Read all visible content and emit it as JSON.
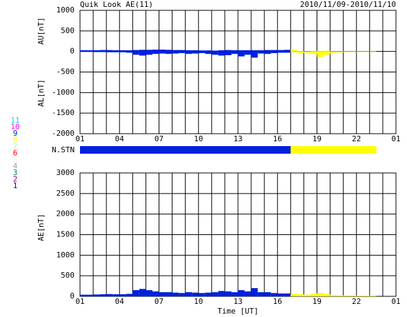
{
  "chart_data": [
    {
      "type": "bars",
      "title": "Quik Look AE(11)",
      "date_range": "2010/11/09-2010/11/10",
      "ylabels": [
        "AU[nT]",
        "AL[nT]"
      ],
      "x": [
        0,
        0.5,
        1,
        1.5,
        2,
        2.5,
        3,
        3.5,
        4,
        4.5,
        5,
        5.5,
        6,
        6.5,
        7,
        7.5,
        8,
        8.5,
        9,
        9.5,
        10,
        10.5,
        11,
        11.5,
        12,
        12.5,
        13,
        13.5,
        14,
        14.5,
        15,
        15.5,
        16,
        16.5,
        17,
        17.5,
        18,
        18.5,
        19,
        19.5,
        20,
        20.5,
        21,
        21.5,
        22
      ],
      "series": [
        {
          "values": [
            30,
            30,
            30,
            35,
            35,
            30,
            30,
            30,
            35,
            40,
            40,
            45,
            45,
            40,
            35,
            35,
            30,
            30,
            25,
            25,
            20,
            30,
            35,
            30,
            30,
            30,
            30,
            30,
            35,
            35,
            35,
            40,
            40,
            10,
            5,
            10,
            15,
            15,
            5,
            5,
            5,
            5,
            5,
            5,
            5
          ]
        },
        {
          "values": [
            -10,
            -10,
            -15,
            -15,
            -20,
            -20,
            -20,
            -30,
            -80,
            -100,
            -80,
            -60,
            -50,
            -60,
            -50,
            -40,
            -60,
            -50,
            -40,
            -60,
            -80,
            -100,
            -90,
            -60,
            -120,
            -80,
            -150,
            -50,
            -60,
            -40,
            -30,
            -30,
            -20,
            -40,
            -30,
            -60,
            -130,
            -80,
            -30,
            -20,
            -15,
            -10,
            -10,
            -10,
            -10
          ]
        }
      ],
      "xlim": [
        0,
        24
      ],
      "xticks": [
        {
          "value": 0,
          "label": "01"
        },
        {
          "value": 3,
          "label": "04"
        },
        {
          "value": 6,
          "label": "07"
        },
        {
          "value": 9,
          "label": "10"
        },
        {
          "value": 12,
          "label": "13"
        },
        {
          "value": 15,
          "label": "16"
        },
        {
          "value": 18,
          "label": "19"
        },
        {
          "value": 21,
          "label": "22"
        },
        {
          "value": 24,
          "label": "01"
        }
      ],
      "xgrid": [
        0,
        1,
        2,
        3,
        4,
        5,
        6,
        7,
        8,
        9,
        10,
        11,
        12,
        13,
        14,
        15,
        16,
        17,
        18,
        19,
        20,
        21,
        22,
        23,
        24
      ],
      "ylim": [
        -2000,
        1000
      ],
      "yticks": [
        -2000,
        -1500,
        -1000,
        -500,
        0,
        500,
        1000
      ]
    },
    {
      "type": "stations",
      "label": "N.STN",
      "x": [
        0,
        0.5,
        1,
        1.5,
        2,
        2.5,
        3,
        3.5,
        4,
        4.5,
        5,
        5.5,
        6,
        6.5,
        7,
        7.5,
        8,
        8.5,
        9,
        9.5,
        10,
        10.5,
        11,
        11.5,
        12,
        12.5,
        13,
        13.5,
        14,
        14.5,
        15,
        15.5,
        16,
        16.5,
        17,
        17.5,
        18,
        18.5,
        19,
        19.5,
        20,
        20.5,
        21,
        21.5,
        22
      ],
      "values": [
        9,
        9,
        9,
        9,
        9,
        9,
        9,
        9,
        9,
        9,
        9,
        9,
        9,
        9,
        9,
        9,
        9,
        9,
        9,
        9,
        9,
        9,
        9,
        9,
        9,
        9,
        9,
        9,
        9,
        9,
        9,
        9,
        8,
        8,
        8,
        8,
        8,
        8,
        8,
        8,
        8,
        8,
        8,
        8,
        8
      ],
      "levels": [
        1,
        2,
        3,
        4,
        5,
        6,
        7,
        8,
        9,
        10,
        11
      ],
      "colors": [
        "#0000a0",
        "#800080",
        "#008080",
        "#a0a0a0",
        "#f0f0f0",
        "#ff0000",
        "#a0ffa0",
        "#ffff00",
        "#0020e0",
        "#ff00ff",
        "#00e0e0"
      ]
    },
    {
      "type": "bars",
      "ylabels": [
        "AE[nT]"
      ],
      "xlabel": "Time [UT]",
      "x": [
        0,
        0.5,
        1,
        1.5,
        2,
        2.5,
        3,
        3.5,
        4,
        4.5,
        5,
        5.5,
        6,
        6.5,
        7,
        7.5,
        8,
        8.5,
        9,
        9.5,
        10,
        10.5,
        11,
        11.5,
        12,
        12.5,
        13,
        13.5,
        14,
        14.5,
        15,
        15.5,
        16,
        16.5,
        17,
        17.5,
        18,
        18.5,
        19,
        19.5,
        20,
        20.5,
        21,
        21.5,
        22
      ],
      "series": [
        {
          "values": [
            40,
            40,
            45,
            50,
            55,
            50,
            50,
            60,
            150,
            180,
            150,
            120,
            100,
            100,
            90,
            80,
            100,
            90,
            80,
            90,
            100,
            130,
            120,
            100,
            150,
            120,
            200,
            100,
            100,
            80,
            70,
            70,
            60,
            50,
            40,
            60,
            80,
            60,
            30,
            25,
            20,
            20,
            15,
            15,
            20
          ]
        }
      ],
      "xlim": [
        0,
        24
      ],
      "xticks": [
        {
          "value": 0,
          "label": "01"
        },
        {
          "value": 3,
          "label": "04"
        },
        {
          "value": 6,
          "label": "07"
        },
        {
          "value": 9,
          "label": "10"
        },
        {
          "value": 12,
          "label": "13"
        },
        {
          "value": 15,
          "label": "16"
        },
        {
          "value": 18,
          "label": "19"
        },
        {
          "value": 21,
          "label": "22"
        },
        {
          "value": 24,
          "label": "01"
        }
      ],
      "xgrid": [
        0,
        1,
        2,
        3,
        4,
        5,
        6,
        7,
        8,
        9,
        10,
        11,
        12,
        13,
        14,
        15,
        16,
        17,
        18,
        19,
        20,
        21,
        22,
        23,
        24
      ],
      "ylim": [
        0,
        3000
      ],
      "yticks": [
        0,
        500,
        1000,
        1500,
        2000,
        2500,
        3000
      ]
    }
  ]
}
